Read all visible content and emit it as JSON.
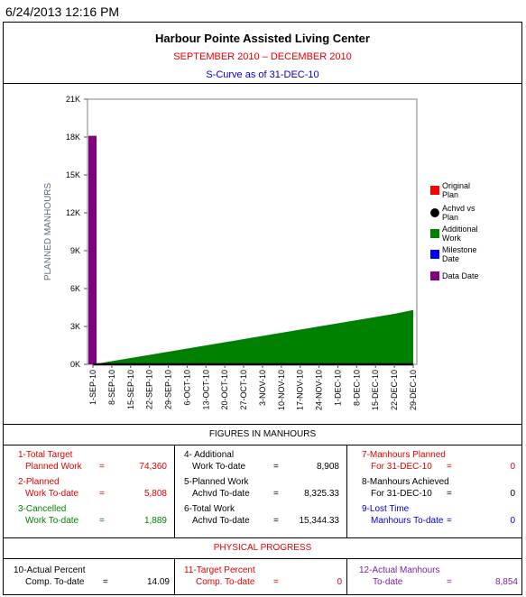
{
  "timestamp": "6/24/2013 12:16 PM",
  "header": {
    "title": "Harbour Pointe Assisted Living Center",
    "period": "SEPTEMBER 2010 – DECEMBER  2010",
    "scurve": "S-Curve as of 31-DEC-10"
  },
  "colors": {
    "original_plan": "#ff0000",
    "achvd_vs_plan": "#000000",
    "additional_work": "#008000",
    "milestone_date": "#0000ff",
    "data_date": "#800080"
  },
  "chart_data": {
    "type": "area",
    "ylabel": "PLANNED MANHOURS",
    "xlabel": "",
    "ylim": [
      0,
      21000
    ],
    "y_ticks": [
      "0K",
      "3K",
      "6K",
      "9K",
      "12K",
      "15K",
      "18K",
      "21K"
    ],
    "categories": [
      "1-SEP-10",
      "8-SEP-10",
      "15-SEP-10",
      "22-SEP-10",
      "29-SEP-10",
      "6-OCT-10",
      "13-OCT-10",
      "20-OCT-10",
      "27-OCT-10",
      "3-NOV-10",
      "10-NOV-10",
      "17-NOV-10",
      "24-NOV-10",
      "1-DEC-10",
      "8-DEC-10",
      "15-DEC-10",
      "22-DEC-10",
      "29-DEC-10"
    ],
    "series": [
      {
        "name": "Additional Work",
        "type": "area",
        "values": [
          0,
          250,
          500,
          750,
          1000,
          1250,
          1500,
          1750,
          2000,
          2250,
          2500,
          2750,
          3000,
          3250,
          3500,
          3750,
          4000,
          4300
        ]
      },
      {
        "name": "Achvd vs Plan",
        "type": "line",
        "values": [
          0,
          0,
          0,
          0,
          0,
          0,
          0,
          0,
          0,
          0,
          0,
          0,
          0,
          0,
          0,
          0,
          0,
          0
        ]
      },
      {
        "name": "Data Date",
        "type": "bar",
        "category": "1-SEP-10",
        "value": 18100
      }
    ],
    "legend": [
      "Original Plan",
      "Achvd vs Plan",
      "Additional Work",
      "Milestone Date",
      "Data Date"
    ],
    "legend_position": "right"
  },
  "figures": {
    "title": "FIGURES IN MANHOURS",
    "col1": [
      {
        "l1": "1-Total Target",
        "l2": "Planned Work",
        "eq": "=",
        "val": "74,360",
        "color": "red"
      },
      {
        "l1": "2-Planned",
        "l2": "Work To-date",
        "eq": "=",
        "val": "5,808",
        "color": "red"
      },
      {
        "l1": "3-Cancelled",
        "l2": "Work To-date",
        "eq": "=",
        "val": "1,889",
        "color": "green"
      }
    ],
    "col2": [
      {
        "l1": "4- Additional",
        "l2": "Work To-date",
        "eq": "=",
        "val": "8,908",
        "color": "black"
      },
      {
        "l1": "5-Planned Work",
        "l2": "Achvd To-date",
        "eq": "=",
        "val": "8,325.33",
        "color": "black"
      },
      {
        "l1": "6-Total Work",
        "l2": "Achvd To-date",
        "eq": "=",
        "val": "15,344.33",
        "color": "black"
      }
    ],
    "col3": [
      {
        "l1": "7-Manhours Planned",
        "l2": "For 31-DEC-10",
        "eq": "=",
        "val": "0",
        "color": "red"
      },
      {
        "l1": "8-Manhours Achieved",
        "l2": "For 31-DEC-10",
        "eq": "=",
        "val": "0",
        "color": "black"
      },
      {
        "l1": "9-Lost Time",
        "l2": "Manhours To-date",
        "eq": "=",
        "val": "0",
        "color": "blue"
      }
    ]
  },
  "physical": {
    "title": "PHYSICAL PROGRESS",
    "items": [
      {
        "l1": "10-Actual Percent",
        "l2": "Comp. To-date",
        "eq": "=",
        "val": "14.09",
        "color": "black"
      },
      {
        "l1": "11-Target Percent",
        "l2": "Comp. To-date",
        "eq": "=",
        "val": "0",
        "color": "red"
      },
      {
        "l1": "12-Actual Manhours",
        "l2": "To-date",
        "eq": "=",
        "val": "8,854",
        "color": "purple"
      }
    ]
  }
}
